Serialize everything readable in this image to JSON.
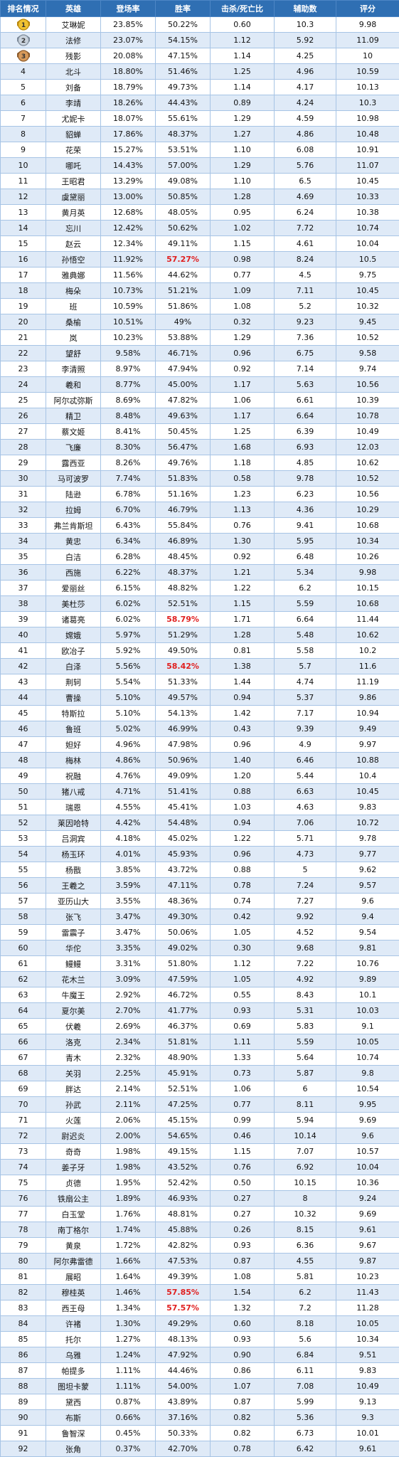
{
  "table": {
    "headers": [
      "排名情况",
      "英雄",
      "登场率",
      "胜率",
      "击杀/死亡比",
      "辅助数",
      "评分"
    ],
    "highlight_color": "#e02020",
    "medal_ranks": [
      1,
      2,
      3
    ],
    "rows": [
      [
        "1",
        "艾琳妮",
        "23.85%",
        "50.22%",
        "0.60",
        "10.3",
        "9.98"
      ],
      [
        "2",
        "法修",
        "23.07%",
        "54.15%",
        "1.12",
        "5.92",
        "11.09"
      ],
      [
        "3",
        "残影",
        "20.08%",
        "47.15%",
        "1.14",
        "4.25",
        "10"
      ],
      [
        "4",
        "北斗",
        "18.80%",
        "51.46%",
        "1.25",
        "4.96",
        "10.59"
      ],
      [
        "5",
        "刘备",
        "18.79%",
        "49.73%",
        "1.14",
        "4.17",
        "10.13"
      ],
      [
        "6",
        "李靖",
        "18.26%",
        "44.43%",
        "0.89",
        "4.24",
        "10.3"
      ],
      [
        "7",
        "尤妮卡",
        "18.07%",
        "55.61%",
        "1.29",
        "4.59",
        "10.98"
      ],
      [
        "8",
        "貂蝉",
        "17.86%",
        "48.37%",
        "1.27",
        "4.86",
        "10.48"
      ],
      [
        "9",
        "花荣",
        "15.27%",
        "53.51%",
        "1.10",
        "6.08",
        "10.91"
      ],
      [
        "10",
        "哪吒",
        "14.43%",
        "57.00%",
        "1.29",
        "5.76",
        "11.07"
      ],
      [
        "11",
        "王昭君",
        "13.29%",
        "49.08%",
        "1.10",
        "6.5",
        "10.45"
      ],
      [
        "12",
        "虞黛丽",
        "13.00%",
        "50.85%",
        "1.28",
        "4.69",
        "10.33"
      ],
      [
        "13",
        "黄月英",
        "12.68%",
        "48.05%",
        "0.95",
        "6.24",
        "10.38"
      ],
      [
        "14",
        "忘川",
        "12.42%",
        "50.62%",
        "1.02",
        "7.72",
        "10.74"
      ],
      [
        "15",
        "赵云",
        "12.34%",
        "49.11%",
        "1.15",
        "4.61",
        "10.04"
      ],
      [
        "16",
        "孙悟空",
        "11.92%",
        "57.27%",
        "0.98",
        "8.24",
        "10.5"
      ],
      [
        "17",
        "雅典娜",
        "11.56%",
        "44.62%",
        "0.77",
        "4.5",
        "9.75"
      ],
      [
        "18",
        "梅朵",
        "10.73%",
        "51.21%",
        "1.09",
        "7.11",
        "10.45"
      ],
      [
        "19",
        "班",
        "10.59%",
        "51.86%",
        "1.08",
        "5.2",
        "10.32"
      ],
      [
        "20",
        "桑榆",
        "10.51%",
        "49%",
        "0.32",
        "9.23",
        "9.45"
      ],
      [
        "21",
        "岚",
        "10.23%",
        "53.88%",
        "1.29",
        "7.36",
        "10.52"
      ],
      [
        "22",
        "望舒",
        "9.58%",
        "46.71%",
        "0.96",
        "6.75",
        "9.58"
      ],
      [
        "23",
        "李清照",
        "8.97%",
        "47.94%",
        "0.92",
        "7.14",
        "9.74"
      ],
      [
        "24",
        "羲和",
        "8.77%",
        "45.00%",
        "1.17",
        "5.63",
        "10.56"
      ],
      [
        "25",
        "阿尔忒弥斯",
        "8.69%",
        "47.82%",
        "1.06",
        "6.61",
        "10.39"
      ],
      [
        "26",
        "精卫",
        "8.48%",
        "49.63%",
        "1.17",
        "6.64",
        "10.78"
      ],
      [
        "27",
        "蔡文姬",
        "8.41%",
        "50.45%",
        "1.25",
        "6.39",
        "10.49"
      ],
      [
        "28",
        "飞廉",
        "8.30%",
        "56.47%",
        "1.68",
        "6.93",
        "12.03"
      ],
      [
        "29",
        "露西亚",
        "8.26%",
        "49.76%",
        "1.18",
        "4.85",
        "10.62"
      ],
      [
        "30",
        "马可波罗",
        "7.74%",
        "51.83%",
        "0.58",
        "9.78",
        "10.52"
      ],
      [
        "31",
        "陆逊",
        "6.78%",
        "51.16%",
        "1.23",
        "6.23",
        "10.56"
      ],
      [
        "32",
        "拉姆",
        "6.70%",
        "46.79%",
        "1.13",
        "4.36",
        "10.29"
      ],
      [
        "33",
        "弗兰肯斯坦",
        "6.43%",
        "55.84%",
        "0.76",
        "9.41",
        "10.68"
      ],
      [
        "34",
        "黄忠",
        "6.34%",
        "46.89%",
        "1.30",
        "5.95",
        "10.34"
      ],
      [
        "35",
        "白洁",
        "6.28%",
        "48.45%",
        "0.92",
        "6.48",
        "10.26"
      ],
      [
        "36",
        "西施",
        "6.22%",
        "48.37%",
        "1.21",
        "5.34",
        "9.98"
      ],
      [
        "37",
        "爱丽丝",
        "6.15%",
        "48.82%",
        "1.22",
        "6.2",
        "10.15"
      ],
      [
        "38",
        "美杜莎",
        "6.02%",
        "52.51%",
        "1.15",
        "5.59",
        "10.68"
      ],
      [
        "39",
        "诸葛亮",
        "6.02%",
        "58.79%",
        "1.71",
        "6.64",
        "11.44"
      ],
      [
        "40",
        "嫦娥",
        "5.97%",
        "51.29%",
        "1.28",
        "5.48",
        "10.62"
      ],
      [
        "41",
        "欧冶子",
        "5.92%",
        "49.50%",
        "0.81",
        "5.58",
        "10.2"
      ],
      [
        "42",
        "白泽",
        "5.56%",
        "58.42%",
        "1.38",
        "5.7",
        "11.6"
      ],
      [
        "43",
        "荆轲",
        "5.54%",
        "51.33%",
        "1.44",
        "4.74",
        "11.19"
      ],
      [
        "44",
        "曹操",
        "5.10%",
        "49.57%",
        "0.94",
        "5.37",
        "9.86"
      ],
      [
        "45",
        "特斯拉",
        "5.10%",
        "54.13%",
        "1.42",
        "7.17",
        "10.94"
      ],
      [
        "46",
        "鲁班",
        "5.02%",
        "46.99%",
        "0.43",
        "9.39",
        "9.49"
      ],
      [
        "47",
        "妲好",
        "4.96%",
        "47.98%",
        "0.96",
        "4.9",
        "9.97"
      ],
      [
        "48",
        "梅林",
        "4.86%",
        "50.96%",
        "1.40",
        "6.46",
        "10.88"
      ],
      [
        "49",
        "祝融",
        "4.76%",
        "49.09%",
        "1.20",
        "5.44",
        "10.4"
      ],
      [
        "50",
        "猪八戒",
        "4.71%",
        "51.41%",
        "0.88",
        "6.63",
        "10.45"
      ],
      [
        "51",
        "瑞恩",
        "4.55%",
        "45.41%",
        "1.03",
        "4.63",
        "9.83"
      ],
      [
        "52",
        "莱因哈特",
        "4.42%",
        "54.48%",
        "0.94",
        "7.06",
        "10.72"
      ],
      [
        "53",
        "吕洞宾",
        "4.18%",
        "45.02%",
        "1.22",
        "5.71",
        "9.78"
      ],
      [
        "54",
        "杨玉环",
        "4.01%",
        "45.93%",
        "0.96",
        "4.73",
        "9.77"
      ],
      [
        "55",
        "杨戬",
        "3.85%",
        "43.72%",
        "0.88",
        "5",
        "9.62"
      ],
      [
        "56",
        "王羲之",
        "3.59%",
        "47.11%",
        "0.78",
        "7.24",
        "9.57"
      ],
      [
        "57",
        "亚历山大",
        "3.55%",
        "48.36%",
        "0.74",
        "7.27",
        "9.6"
      ],
      [
        "58",
        "张飞",
        "3.47%",
        "49.30%",
        "0.42",
        "9.92",
        "9.4"
      ],
      [
        "59",
        "雷震子",
        "3.47%",
        "50.06%",
        "1.05",
        "4.52",
        "9.54"
      ],
      [
        "60",
        "华佗",
        "3.35%",
        "49.02%",
        "0.30",
        "9.68",
        "9.81"
      ],
      [
        "61",
        "鳗鳗",
        "3.31%",
        "51.80%",
        "1.12",
        "7.22",
        "10.76"
      ],
      [
        "62",
        "花木兰",
        "3.09%",
        "47.59%",
        "1.05",
        "4.92",
        "9.89"
      ],
      [
        "63",
        "牛魔王",
        "2.92%",
        "46.72%",
        "0.55",
        "8.43",
        "10.1"
      ],
      [
        "64",
        "夏尔美",
        "2.70%",
        "41.77%",
        "0.93",
        "5.31",
        "10.03"
      ],
      [
        "65",
        "伏羲",
        "2.69%",
        "46.37%",
        "0.69",
        "5.83",
        "9.1"
      ],
      [
        "66",
        "洛克",
        "2.34%",
        "51.81%",
        "1.11",
        "5.59",
        "10.05"
      ],
      [
        "67",
        "青木",
        "2.32%",
        "48.90%",
        "1.33",
        "5.64",
        "10.74"
      ],
      [
        "68",
        "关羽",
        "2.25%",
        "45.91%",
        "0.73",
        "5.87",
        "9.8"
      ],
      [
        "69",
        "胖达",
        "2.14%",
        "52.51%",
        "1.06",
        "6",
        "10.54"
      ],
      [
        "70",
        "孙武",
        "2.11%",
        "47.25%",
        "0.77",
        "8.11",
        "9.95"
      ],
      [
        "71",
        "火莲",
        "2.06%",
        "45.15%",
        "0.99",
        "5.94",
        "9.69"
      ],
      [
        "72",
        "尉迟炎",
        "2.00%",
        "54.65%",
        "0.46",
        "10.14",
        "9.6"
      ],
      [
        "73",
        "奇奇",
        "1.98%",
        "49.15%",
        "1.15",
        "7.07",
        "10.57"
      ],
      [
        "74",
        "姜子牙",
        "1.98%",
        "43.52%",
        "0.76",
        "6.92",
        "10.04"
      ],
      [
        "75",
        "贞德",
        "1.95%",
        "52.42%",
        "0.50",
        "10.15",
        "10.36"
      ],
      [
        "76",
        "铁扇公主",
        "1.89%",
        "46.93%",
        "0.27",
        "8",
        "9.24"
      ],
      [
        "77",
        "白玉堂",
        "1.76%",
        "48.81%",
        "0.27",
        "10.32",
        "9.69"
      ],
      [
        "78",
        "南丁格尔",
        "1.74%",
        "45.88%",
        "0.26",
        "8.15",
        "9.61"
      ],
      [
        "79",
        "黄泉",
        "1.72%",
        "42.82%",
        "0.93",
        "6.36",
        "9.67"
      ],
      [
        "80",
        "阿尔弗雷德",
        "1.66%",
        "47.53%",
        "0.87",
        "4.55",
        "9.87"
      ],
      [
        "81",
        "展昭",
        "1.64%",
        "49.39%",
        "1.08",
        "5.81",
        "10.23"
      ],
      [
        "82",
        "穆桂英",
        "1.46%",
        "57.85%",
        "1.54",
        "6.2",
        "11.43"
      ],
      [
        "83",
        "西王母",
        "1.34%",
        "57.57%",
        "1.32",
        "7.2",
        "11.28"
      ],
      [
        "84",
        "许褚",
        "1.30%",
        "49.29%",
        "0.60",
        "8.18",
        "10.05"
      ],
      [
        "85",
        "托尔",
        "1.27%",
        "48.13%",
        "0.93",
        "5.6",
        "10.34"
      ],
      [
        "86",
        "乌雅",
        "1.24%",
        "47.92%",
        "0.90",
        "6.84",
        "9.51"
      ],
      [
        "87",
        "帕提多",
        "1.11%",
        "44.46%",
        "0.86",
        "6.11",
        "9.83"
      ],
      [
        "88",
        "图坦卡蒙",
        "1.11%",
        "54.00%",
        "1.07",
        "7.08",
        "10.49"
      ],
      [
        "89",
        "黛西",
        "0.87%",
        "43.89%",
        "0.87",
        "5.99",
        "9.13"
      ],
      [
        "90",
        "布斯",
        "0.66%",
        "37.16%",
        "0.82",
        "5.36",
        "9.3"
      ],
      [
        "91",
        "鲁智深",
        "0.45%",
        "50.33%",
        "0.82",
        "6.73",
        "10.01"
      ],
      [
        "92",
        "张角",
        "0.37%",
        "42.70%",
        "0.78",
        "6.42",
        "9.61"
      ]
    ],
    "highlighted_win_rates": [
      "57.27%",
      "58.79%",
      "58.42%",
      "57.85%",
      "57.57%"
    ]
  }
}
